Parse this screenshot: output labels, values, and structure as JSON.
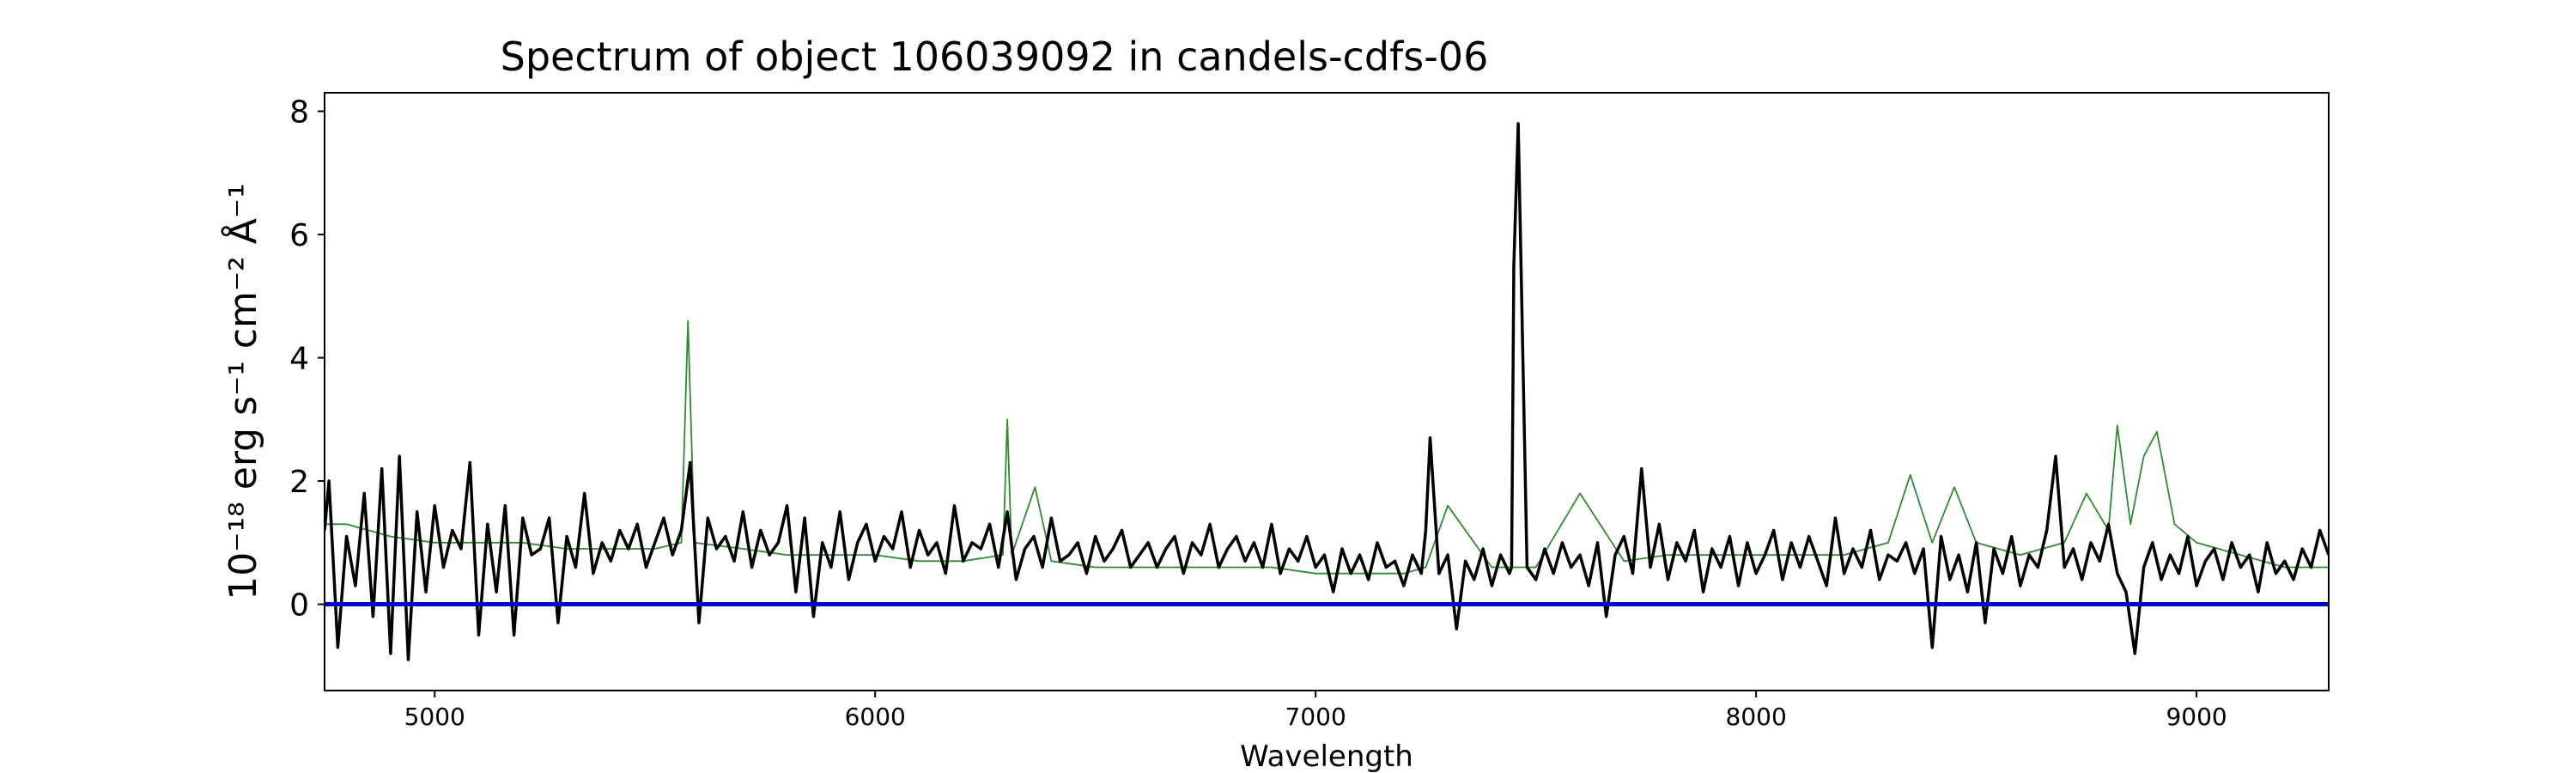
{
  "chart_data": {
    "type": "line",
    "title": "Spectrum of object 106039092 in candels-cdfs-06",
    "xlabel": "Wavelength",
    "ylabel": "10⁻¹⁸ erg s⁻¹ cm⁻² Å⁻¹",
    "xlim": [
      4750,
      9300
    ],
    "ylim": [
      -1.4,
      8.3
    ],
    "xticks": [
      5000,
      6000,
      7000,
      8000,
      9000
    ],
    "yticks": [
      0,
      2,
      4,
      6,
      8
    ],
    "grid": false,
    "legend": "none",
    "zero_line": {
      "y": 0,
      "color": "#0000cc"
    },
    "series": [
      {
        "role": "model",
        "color": "#2e8b2e",
        "x": [
          4750,
          4800,
          4900,
          5000,
          5100,
          5200,
          5300,
          5400,
          5500,
          5560,
          5575,
          5590,
          5700,
          5800,
          5900,
          6000,
          6100,
          6200,
          6290,
          6300,
          6310,
          6363,
          6400,
          6500,
          6600,
          6700,
          6800,
          6900,
          7000,
          7100,
          7200,
          7250,
          7300,
          7400,
          7500,
          7600,
          7700,
          7800,
          7900,
          8000,
          8100,
          8200,
          8300,
          8350,
          8400,
          8450,
          8500,
          8600,
          8700,
          8750,
          8800,
          8820,
          8850,
          8880,
          8910,
          8950,
          9000,
          9100,
          9200,
          9300
        ],
        "y": [
          1.3,
          1.3,
          1.1,
          1.0,
          1.0,
          1.0,
          0.9,
          0.9,
          0.9,
          1.0,
          4.6,
          1.0,
          0.9,
          0.8,
          0.8,
          0.8,
          0.7,
          0.7,
          0.8,
          3.0,
          0.8,
          1.9,
          0.7,
          0.6,
          0.6,
          0.6,
          0.6,
          0.6,
          0.5,
          0.5,
          0.5,
          0.6,
          1.6,
          0.6,
          0.6,
          1.8,
          0.7,
          0.8,
          0.8,
          0.8,
          0.8,
          0.8,
          1.0,
          2.1,
          1.0,
          1.9,
          1.0,
          0.8,
          1.0,
          1.8,
          1.2,
          2.9,
          1.3,
          2.4,
          2.8,
          1.3,
          1.0,
          0.8,
          0.6,
          0.6
        ]
      },
      {
        "role": "observed",
        "color": "#000000",
        "x": [
          4750,
          4760,
          4780,
          4800,
          4820,
          4840,
          4860,
          4880,
          4900,
          4920,
          4940,
          4960,
          4980,
          5000,
          5020,
          5040,
          5060,
          5080,
          5100,
          5120,
          5140,
          5160,
          5180,
          5200,
          5220,
          5240,
          5260,
          5280,
          5300,
          5320,
          5340,
          5360,
          5380,
          5400,
          5420,
          5440,
          5460,
          5480,
          5500,
          5520,
          5540,
          5560,
          5580,
          5600,
          5620,
          5640,
          5660,
          5680,
          5700,
          5720,
          5740,
          5760,
          5780,
          5800,
          5820,
          5840,
          5860,
          5880,
          5900,
          5920,
          5940,
          5960,
          5980,
          6000,
          6020,
          6040,
          6060,
          6080,
          6100,
          6120,
          6140,
          6160,
          6180,
          6200,
          6220,
          6240,
          6260,
          6280,
          6300,
          6320,
          6340,
          6360,
          6380,
          6400,
          6420,
          6440,
          6460,
          6480,
          6500,
          6520,
          6540,
          6560,
          6580,
          6600,
          6620,
          6640,
          6660,
          6680,
          6700,
          6720,
          6740,
          6760,
          6780,
          6800,
          6820,
          6840,
          6860,
          6880,
          6900,
          6920,
          6940,
          6960,
          6980,
          7000,
          7020,
          7040,
          7060,
          7080,
          7100,
          7120,
          7140,
          7160,
          7180,
          7200,
          7220,
          7240,
          7250,
          7260,
          7280,
          7300,
          7320,
          7340,
          7360,
          7380,
          7400,
          7420,
          7440,
          7445,
          7450,
          7460,
          7480,
          7500,
          7520,
          7540,
          7560,
          7580,
          7600,
          7620,
          7640,
          7660,
          7680,
          7700,
          7720,
          7740,
          7760,
          7780,
          7800,
          7820,
          7840,
          7860,
          7880,
          7900,
          7920,
          7940,
          7960,
          7980,
          8000,
          8020,
          8040,
          8060,
          8080,
          8100,
          8120,
          8140,
          8160,
          8180,
          8200,
          8220,
          8240,
          8260,
          8280,
          8300,
          8320,
          8340,
          8360,
          8380,
          8400,
          8420,
          8440,
          8460,
          8480,
          8500,
          8520,
          8540,
          8560,
          8580,
          8600,
          8620,
          8640,
          8660,
          8680,
          8700,
          8720,
          8740,
          8760,
          8780,
          8800,
          8820,
          8840,
          8860,
          8880,
          8900,
          8920,
          8940,
          8960,
          8980,
          9000,
          9020,
          9040,
          9060,
          9080,
          9100,
          9120,
          9140,
          9160,
          9180,
          9200,
          9220,
          9240,
          9260,
          9280,
          9300
        ],
        "y": [
          1.2,
          2.0,
          -0.7,
          1.1,
          0.3,
          1.8,
          -0.2,
          2.2,
          -0.8,
          2.4,
          -0.9,
          1.5,
          0.2,
          1.6,
          0.6,
          1.2,
          0.9,
          2.3,
          -0.5,
          1.3,
          0.2,
          1.6,
          -0.5,
          1.4,
          0.8,
          0.9,
          1.4,
          -0.3,
          1.1,
          0.6,
          1.8,
          0.5,
          1.0,
          0.7,
          1.2,
          0.9,
          1.3,
          0.6,
          1.0,
          1.4,
          0.8,
          1.2,
          2.3,
          -0.3,
          1.4,
          0.9,
          1.1,
          0.7,
          1.5,
          0.6,
          1.2,
          0.8,
          1.0,
          1.6,
          0.2,
          1.4,
          -0.2,
          1.0,
          0.6,
          1.5,
          0.4,
          1.0,
          1.3,
          0.7,
          1.1,
          0.9,
          1.5,
          0.6,
          1.2,
          0.8,
          1.0,
          0.5,
          1.6,
          0.7,
          1.0,
          0.9,
          1.3,
          0.6,
          1.5,
          0.4,
          0.9,
          1.1,
          0.6,
          1.4,
          0.7,
          0.8,
          1.0,
          0.5,
          1.1,
          0.7,
          0.9,
          1.2,
          0.6,
          0.8,
          1.0,
          0.6,
          0.9,
          1.1,
          0.5,
          1.0,
          0.8,
          1.3,
          0.6,
          0.9,
          1.1,
          0.7,
          1.0,
          0.6,
          1.3,
          0.5,
          0.9,
          0.7,
          1.1,
          0.6,
          0.8,
          0.2,
          0.9,
          0.5,
          0.8,
          0.4,
          1.0,
          0.6,
          0.7,
          0.3,
          0.8,
          0.5,
          1.2,
          2.7,
          0.5,
          0.8,
          -0.4,
          0.7,
          0.4,
          0.9,
          0.3,
          0.8,
          0.5,
          0.6,
          5.5,
          7.8,
          0.6,
          0.4,
          0.9,
          0.5,
          1.0,
          0.6,
          0.8,
          0.3,
          1.0,
          -0.2,
          0.8,
          1.1,
          0.5,
          2.2,
          0.6,
          1.3,
          0.4,
          1.0,
          0.7,
          1.2,
          0.2,
          0.9,
          0.6,
          1.1,
          0.3,
          1.0,
          0.5,
          0.8,
          1.2,
          0.4,
          1.0,
          0.6,
          1.1,
          0.7,
          0.3,
          1.4,
          0.5,
          0.9,
          0.6,
          1.2,
          0.4,
          0.8,
          0.7,
          1.0,
          0.5,
          0.9,
          -0.7,
          1.1,
          0.4,
          0.8,
          0.2,
          1.0,
          -0.3,
          0.9,
          0.5,
          1.1,
          0.3,
          0.8,
          0.6,
          1.2,
          2.4,
          0.6,
          0.9,
          0.4,
          1.0,
          0.7,
          1.3,
          0.5,
          0.2,
          -0.8,
          0.6,
          1.0,
          0.4,
          0.8,
          0.5,
          1.1,
          0.3,
          0.7,
          0.9,
          0.4,
          1.0,
          0.6,
          0.8,
          0.2,
          1.0,
          0.5,
          0.7,
          0.4,
          0.9,
          0.6,
          1.2,
          0.8
        ]
      }
    ]
  }
}
